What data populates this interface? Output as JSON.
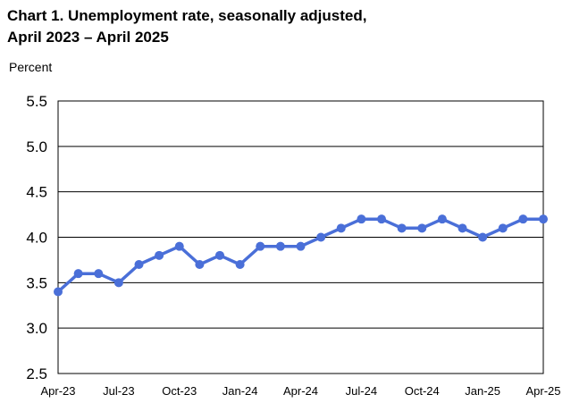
{
  "chart_data": {
    "type": "line",
    "title_line1": "Chart 1. Unemployment rate, seasonally adjusted,",
    "title_line2": "April 2023 – April 2025",
    "ylabel": "Percent",
    "xlabel": "",
    "ylim": [
      2.5,
      5.5
    ],
    "y_ticks": [
      "2.5",
      "3.0",
      "3.5",
      "4.0",
      "4.5",
      "5.0",
      "5.5"
    ],
    "x_tick_labels": [
      "Apr-23",
      "Jul-23",
      "Oct-23",
      "Jan-24",
      "Apr-24",
      "Jul-24",
      "Oct-24",
      "Jan-25",
      "Apr-25"
    ],
    "x_tick_positions": [
      0,
      3,
      6,
      9,
      12,
      15,
      18,
      21,
      24
    ],
    "categories": [
      "Apr-23",
      "May-23",
      "Jun-23",
      "Jul-23",
      "Aug-23",
      "Sep-23",
      "Oct-23",
      "Nov-23",
      "Dec-23",
      "Jan-24",
      "Feb-24",
      "Mar-24",
      "Apr-24",
      "May-24",
      "Jun-24",
      "Jul-24",
      "Aug-24",
      "Sep-24",
      "Oct-24",
      "Nov-24",
      "Dec-24",
      "Jan-25",
      "Feb-25",
      "Mar-25",
      "Apr-25"
    ],
    "values": [
      3.4,
      3.6,
      3.6,
      3.5,
      3.7,
      3.8,
      3.9,
      3.7,
      3.8,
      3.7,
      3.9,
      3.9,
      3.9,
      4.0,
      4.1,
      4.2,
      4.2,
      4.1,
      4.1,
      4.2,
      4.1,
      4.0,
      4.1,
      4.2,
      4.2
    ],
    "grid": "horizontal",
    "legend": "none",
    "line_color": "#4a6fd8"
  }
}
